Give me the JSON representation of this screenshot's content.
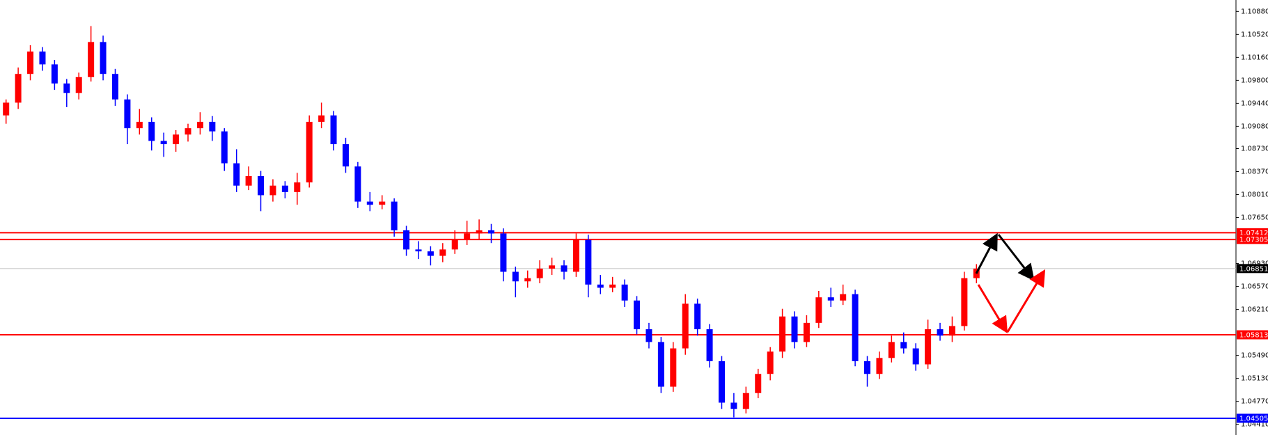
{
  "chart_data": {
    "type": "candlestick",
    "up_color": "#ff0000",
    "down_color": "#0000ff",
    "ylim": [
      1.04243,
      1.11058
    ],
    "yticks": [
      {
        "value": 1.1088,
        "label": "1.10880"
      },
      {
        "value": 1.1052,
        "label": "1.10520"
      },
      {
        "value": 1.1016,
        "label": "1.10160"
      },
      {
        "value": 1.098,
        "label": "1.09800"
      },
      {
        "value": 1.0944,
        "label": "1.09440"
      },
      {
        "value": 1.0908,
        "label": "1.09080"
      },
      {
        "value": 1.0873,
        "label": "1.08730"
      },
      {
        "value": 1.0837,
        "label": "1.08370"
      },
      {
        "value": 1.0801,
        "label": "1.08010"
      },
      {
        "value": 1.0765,
        "label": "1.07650"
      },
      {
        "value": 1.0693,
        "label": "1.06930"
      },
      {
        "value": 1.0657,
        "label": "1.06570"
      },
      {
        "value": 1.0621,
        "label": "1.06210"
      },
      {
        "value": 1.0549,
        "label": "1.05490"
      },
      {
        "value": 1.0513,
        "label": "1.05130"
      },
      {
        "value": 1.0477,
        "label": "1.04770"
      },
      {
        "value": 1.0441,
        "label": "1.04410"
      }
    ],
    "levels": [
      {
        "value": 1.07412,
        "color": "#ff0000"
      },
      {
        "value": 1.07305,
        "color": "#ff0000"
      },
      {
        "value": 1.05813,
        "color": "#ff0000"
      },
      {
        "value": 1.04505,
        "color": "#0000ff"
      }
    ],
    "current_price": {
      "value": 1.06851,
      "color": "#c0c0c0"
    },
    "open": [
      1.0925,
      1.0945,
      1.099,
      1.1025,
      1.1005,
      1.0975,
      1.096,
      1.0985,
      1.104,
      1.099,
      1.095,
      1.0905,
      1.0915,
      1.0885,
      1.088,
      1.0895,
      1.0905,
      1.0915,
      1.09,
      1.085,
      1.0815,
      1.083,
      1.08,
      1.0815,
      1.0805,
      1.082,
      1.0915,
      1.0925,
      1.088,
      1.0845,
      1.079,
      1.0785,
      1.079,
      1.0745,
      1.0715,
      1.0712,
      1.0705,
      1.0715,
      1.073,
      1.074,
      1.0745,
      1.074,
      1.068,
      1.0665,
      1.067,
      1.0685,
      1.069,
      1.068,
      1.073,
      1.066,
      1.0655,
      1.066,
      1.0635,
      1.059,
      1.057,
      1.05,
      1.056,
      1.063,
      1.059,
      1.054,
      1.0475,
      1.0465,
      1.049,
      1.052,
      1.0555,
      1.061,
      1.057,
      1.06,
      1.064,
      1.0635,
      1.0645,
      1.054,
      1.052,
      1.0545,
      1.057,
      1.056,
      1.0535,
      1.059,
      1.058,
      1.0595,
      1.067
    ],
    "high": [
      1.095,
      1.1,
      1.1035,
      1.1032,
      1.1012,
      1.0982,
      1.0992,
      1.1065,
      1.105,
      1.0998,
      1.0958,
      1.0935,
      1.0922,
      1.0898,
      1.0902,
      1.0912,
      1.093,
      1.0924,
      1.0905,
      1.0872,
      1.0845,
      1.0838,
      1.0825,
      1.0822,
      1.0835,
      1.0925,
      1.0945,
      1.0932,
      1.089,
      1.0852,
      1.0805,
      1.08,
      1.0795,
      1.0752,
      1.0728,
      1.072,
      1.0725,
      1.0745,
      1.076,
      1.0762,
      1.0755,
      1.0748,
      1.0688,
      1.0682,
      1.0698,
      1.0702,
      1.0698,
      1.074,
      1.0738,
      1.0675,
      1.0672,
      1.0668,
      1.0642,
      1.06,
      1.0578,
      1.057,
      1.0645,
      1.0638,
      1.0598,
      1.0548,
      1.049,
      1.05,
      1.0528,
      1.0562,
      1.0622,
      1.0618,
      1.0612,
      1.065,
      1.0655,
      1.066,
      1.0652,
      1.0548,
      1.0555,
      1.058,
      1.0585,
      1.0568,
      1.0605,
      1.06,
      1.061,
      1.068,
      1.0692
    ],
    "low": [
      1.0912,
      1.0935,
      1.098,
      1.0995,
      1.0965,
      1.0938,
      1.095,
      1.0978,
      1.098,
      1.094,
      1.088,
      1.0895,
      1.087,
      1.086,
      1.0868,
      1.0884,
      1.0895,
      1.0885,
      1.0838,
      1.0805,
      1.0808,
      1.0775,
      1.079,
      1.0795,
      1.0785,
      1.0812,
      1.0905,
      1.087,
      1.0835,
      1.078,
      1.0775,
      1.0778,
      1.0735,
      1.0705,
      1.07,
      1.069,
      1.0695,
      1.0708,
      1.0722,
      1.073,
      1.0725,
      1.0665,
      1.064,
      1.0655,
      1.0662,
      1.0675,
      1.0668,
      1.0672,
      1.064,
      1.0645,
      1.0648,
      1.0625,
      1.0582,
      1.056,
      1.049,
      1.0492,
      1.055,
      1.058,
      1.053,
      1.0465,
      1.0452,
      1.0458,
      1.0482,
      1.051,
      1.0545,
      1.056,
      1.0562,
      1.0592,
      1.0625,
      1.0628,
      1.0532,
      1.05,
      1.0512,
      1.0538,
      1.0552,
      1.0525,
      1.0528,
      1.0572,
      1.057,
      1.0588,
      1.0662
    ],
    "close": [
      1.0945,
      1.099,
      1.1025,
      1.1005,
      1.0975,
      1.096,
      1.0985,
      1.104,
      1.099,
      1.095,
      1.0905,
      1.0915,
      1.0885,
      1.088,
      1.0895,
      1.0905,
      1.0915,
      1.09,
      1.085,
      1.0815,
      1.083,
      1.08,
      1.0815,
      1.0805,
      1.082,
      1.0915,
      1.0925,
      1.088,
      1.0845,
      1.079,
      1.0785,
      1.079,
      1.0745,
      1.0715,
      1.0712,
      1.0705,
      1.0715,
      1.073,
      1.074,
      1.0745,
      1.074,
      1.068,
      1.0665,
      1.067,
      1.0685,
      1.069,
      1.068,
      1.073,
      1.066,
      1.0655,
      1.066,
      1.0635,
      1.059,
      1.057,
      1.05,
      1.056,
      1.063,
      1.059,
      1.054,
      1.0475,
      1.0465,
      1.049,
      1.052,
      1.0555,
      1.061,
      1.057,
      1.06,
      1.064,
      1.0635,
      1.0645,
      1.054,
      1.052,
      1.0545,
      1.057,
      1.056,
      1.0535,
      1.059,
      1.058,
      1.0595,
      1.067,
      1.0685
    ]
  }
}
